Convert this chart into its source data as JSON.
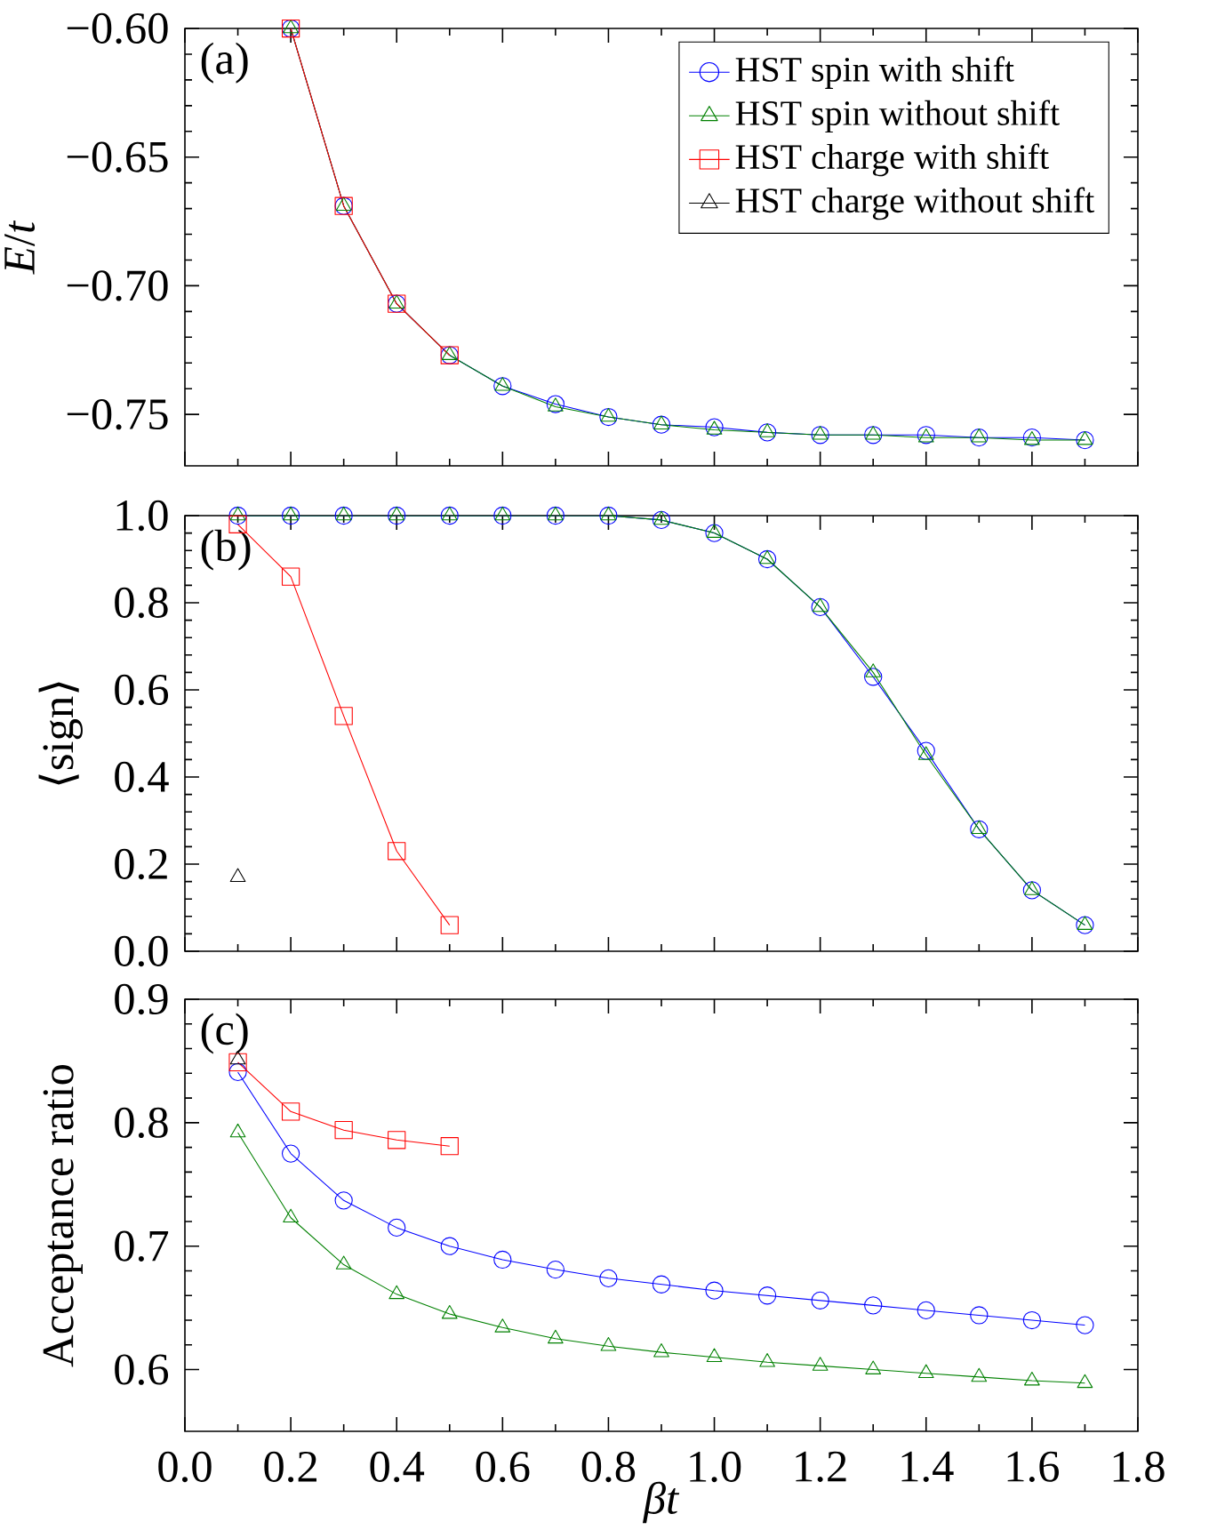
{
  "chart_data": [
    {
      "type": "line",
      "ylabel": "*E*/*t*",
      "annotations": [
        "(a)"
      ],
      "xlim": [
        0.0,
        1.8
      ],
      "xticks": [
        0.0,
        0.2,
        0.4,
        0.6,
        0.8,
        1.0,
        1.2,
        1.4,
        1.6,
        1.8
      ],
      "ylim": [
        -0.77,
        -0.6
      ],
      "yticks": [
        {
          "value": -0.6,
          "label": "−0.60"
        },
        {
          "value": -0.65,
          "label": "−0.65"
        },
        {
          "value": -0.7,
          "label": "−0.70"
        },
        {
          "value": -0.75,
          "label": "−0.75"
        }
      ],
      "tick_labels": "y",
      "legend": "top right",
      "series": [
        {
          "name": "HST spin with shift",
          "color": "#0000ff",
          "marker": "circle",
          "x": [
            0.2,
            0.3,
            0.4,
            0.5,
            0.6,
            0.7,
            0.8,
            0.9,
            1.0,
            1.1,
            1.2,
            1.3,
            1.4,
            1.5,
            1.6,
            1.7
          ],
          "values": [
            -0.6,
            -0.669,
            -0.707,
            -0.727,
            -0.739,
            -0.746,
            -0.751,
            -0.754,
            -0.755,
            -0.757,
            -0.758,
            -0.758,
            -0.758,
            -0.759,
            -0.759,
            -0.76
          ]
        },
        {
          "name": "HST spin without shift",
          "color": "#008000",
          "marker": "triangle",
          "x": [
            0.2,
            0.3,
            0.4,
            0.5,
            0.6,
            0.7,
            0.8,
            0.9,
            1.0,
            1.1,
            1.2,
            1.3,
            1.4,
            1.5,
            1.6,
            1.7
          ],
          "values": [
            -0.6,
            -0.669,
            -0.707,
            -0.727,
            -0.739,
            -0.747,
            -0.751,
            -0.754,
            -0.756,
            -0.757,
            -0.758,
            -0.758,
            -0.759,
            -0.759,
            -0.76,
            -0.76
          ]
        },
        {
          "name": "HST charge with shift",
          "color": "#ff0000",
          "marker": "square",
          "x": [
            0.2,
            0.3,
            0.4,
            0.5
          ],
          "values": [
            -0.6,
            -0.669,
            -0.707,
            -0.727
          ]
        },
        {
          "name": "HST charge without shift",
          "color": "#000000",
          "marker": "triangle_down"
        }
      ]
    },
    {
      "type": "line",
      "ylabel": "⟨sign⟩",
      "annotations": [
        "(b)"
      ],
      "xlim": [
        0.0,
        1.8
      ],
      "xticks": [
        0.0,
        0.2,
        0.4,
        0.6,
        0.8,
        1.0,
        1.2,
        1.4,
        1.6,
        1.8
      ],
      "ylim": [
        0.0,
        1.0
      ],
      "yticks": [
        {
          "value": 0.0,
          "label": "0.0"
        },
        0.2,
        0.4,
        0.6,
        0.8,
        {
          "value": 1.0,
          "label": "1.0"
        }
      ],
      "tick_labels": "y",
      "series": [
        {
          "color": "#0000ff",
          "marker": "circle",
          "x": [
            0.1,
            0.2,
            0.3,
            0.4,
            0.5,
            0.6,
            0.7,
            0.8,
            0.9,
            1.0,
            1.1,
            1.2,
            1.3,
            1.4,
            1.5,
            1.6,
            1.7
          ],
          "values": [
            1.0,
            1.0,
            1.0,
            1.0,
            1.0,
            1.0,
            1.0,
            1.0,
            0.99,
            0.96,
            0.9,
            0.79,
            0.63,
            0.46,
            0.28,
            0.14,
            0.06
          ]
        },
        {
          "color": "#008000",
          "marker": "triangle",
          "x": [
            0.1,
            0.2,
            0.3,
            0.4,
            0.5,
            0.6,
            0.7,
            0.8,
            0.9,
            1.0,
            1.1,
            1.2,
            1.3,
            1.4,
            1.5,
            1.6,
            1.7
          ],
          "values": [
            1.0,
            1.0,
            1.0,
            1.0,
            1.0,
            1.0,
            1.0,
            1.0,
            0.99,
            0.96,
            0.9,
            0.79,
            0.64,
            0.45,
            0.28,
            0.14,
            0.06
          ]
        },
        {
          "color": "#ff0000",
          "marker": "square",
          "x": [
            0.1,
            0.2,
            0.3,
            0.4,
            0.5
          ],
          "values": [
            0.98,
            0.86,
            0.54,
            0.23,
            0.06
          ]
        },
        {
          "color": "#000000",
          "marker": "triangle_down",
          "x": [
            0.1
          ],
          "values": [
            0.17
          ]
        }
      ]
    },
    {
      "type": "line",
      "ylabel": "Acceptance ratio",
      "xlabel": "*βt*",
      "annotations": [
        "(c)"
      ],
      "xlim": [
        0.0,
        1.8
      ],
      "xticks": [
        {
          "value": 0.0,
          "label": "0.0"
        },
        0.2,
        0.4,
        0.6,
        0.8,
        {
          "value": 1.0,
          "label": "1.0"
        },
        1.2,
        1.4,
        1.6,
        1.8
      ],
      "ylim": [
        0.55,
        0.9
      ],
      "yticks": [
        0.6,
        0.7,
        0.8,
        0.9
      ],
      "series": [
        {
          "color": "#0000ff",
          "marker": "circle",
          "x": [
            0.1,
            0.2,
            0.3,
            0.4,
            0.5,
            0.6,
            0.7,
            0.8,
            0.9,
            1.0,
            1.1,
            1.2,
            1.3,
            1.4,
            1.5,
            1.6,
            1.7
          ],
          "values": [
            0.841,
            0.775,
            0.737,
            0.715,
            0.7,
            0.689,
            0.681,
            0.674,
            0.669,
            0.664,
            0.66,
            0.656,
            0.652,
            0.648,
            0.644,
            0.64,
            0.636
          ]
        },
        {
          "color": "#008000",
          "marker": "triangle",
          "x": [
            0.1,
            0.2,
            0.3,
            0.4,
            0.5,
            0.6,
            0.7,
            0.8,
            0.9,
            1.0,
            1.1,
            1.2,
            1.3,
            1.4,
            1.5,
            1.6,
            1.7
          ],
          "values": [
            0.792,
            0.723,
            0.685,
            0.661,
            0.645,
            0.634,
            0.625,
            0.619,
            0.614,
            0.61,
            0.606,
            0.603,
            0.6,
            0.597,
            0.594,
            0.591,
            0.589
          ]
        },
        {
          "color": "#ff0000",
          "marker": "square",
          "x": [
            0.1,
            0.2,
            0.3,
            0.4,
            0.5
          ],
          "values": [
            0.849,
            0.809,
            0.794,
            0.786,
            0.781
          ]
        },
        {
          "color": "#000000",
          "marker": "triangle_down",
          "x": [
            0.1
          ],
          "values": [
            0.851
          ]
        }
      ]
    }
  ]
}
